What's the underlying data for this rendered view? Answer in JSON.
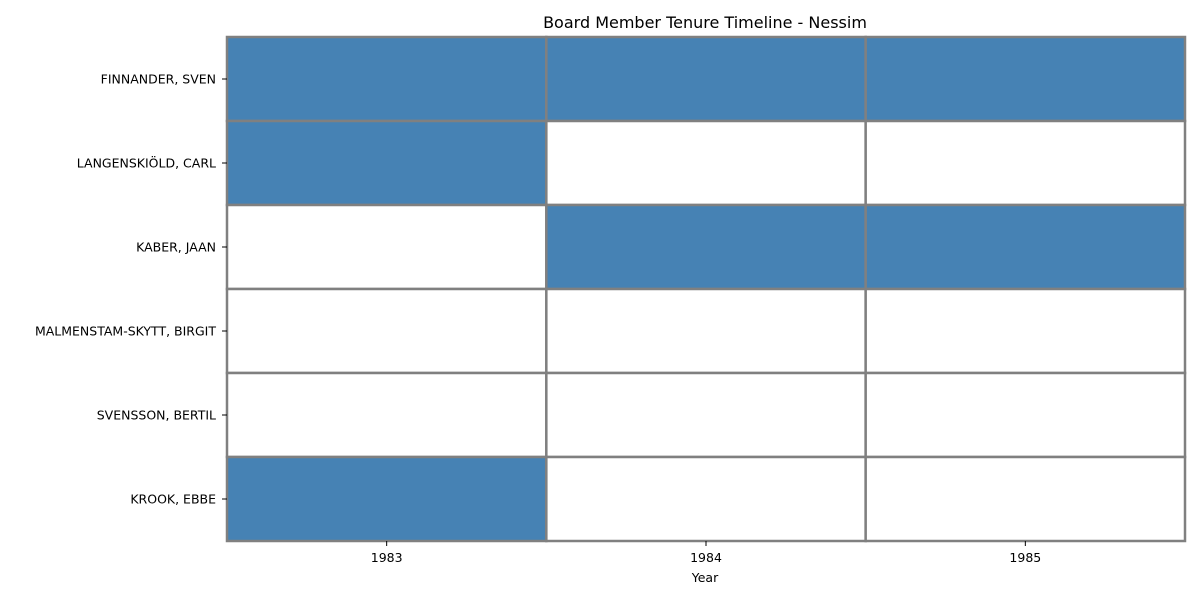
{
  "chart_data": {
    "type": "heatmap",
    "title": "Board Member Tenure Timeline - Nessim",
    "xlabel": "Year",
    "ylabel": "",
    "x": [
      "1983",
      "1984",
      "1985"
    ],
    "y": [
      "FINNANDER, SVEN",
      "LANGENSKIÖLD, CARL",
      "KABER, JAAN",
      "MALMENSTAM-SKYTT, BIRGIT",
      "SVENSSON, BERTIL",
      "KROOK, EBBE"
    ],
    "values": [
      [
        1,
        1,
        1
      ],
      [
        1,
        0,
        0
      ],
      [
        0,
        1,
        1
      ],
      [
        0,
        0,
        0
      ],
      [
        0,
        0,
        0
      ],
      [
        1,
        0,
        0
      ]
    ],
    "colors": {
      "active": "#4682b4",
      "inactive": "#ffffff",
      "grid": "#808080"
    }
  }
}
